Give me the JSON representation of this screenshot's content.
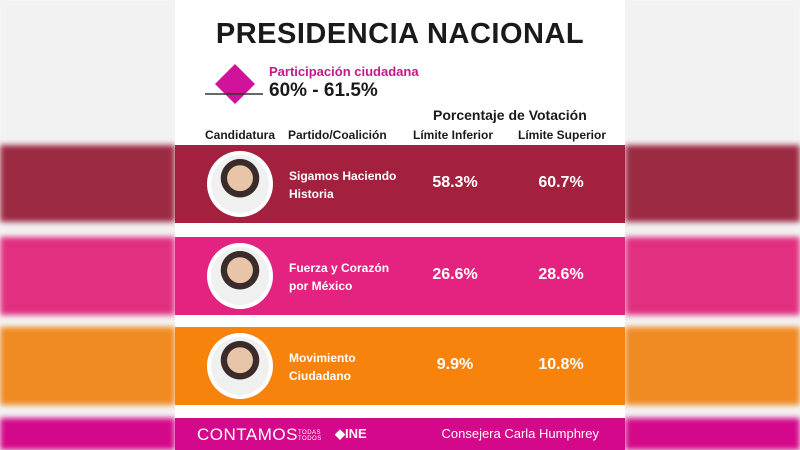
{
  "title": "PRESIDENCIA NACIONAL",
  "participation": {
    "label": "Participación ciudadana",
    "value": "60% - 61.5%",
    "icon": "ballot-box-icon"
  },
  "table": {
    "group_header": "Porcentaje de Votación",
    "columns": [
      "Candidatura",
      "Partido/Coalición",
      "Límite Inferior",
      "Límite Superior"
    ],
    "rows": [
      {
        "party": "Sigamos Haciendo Historia",
        "lower": "58.3%",
        "upper": "60.7%",
        "color": "#a3213f"
      },
      {
        "party": "Fuerza y Corazón por México",
        "lower": "26.6%",
        "upper": "28.6%",
        "color": "#e3237f"
      },
      {
        "party": "Movimiento Ciudadano",
        "lower": "9.9%",
        "upper": "10.8%",
        "color": "#f7820c"
      }
    ]
  },
  "footer": {
    "logo": "CONTAMOS",
    "logo_small_1": "TODAS",
    "logo_small_2": "TODOS",
    "ine": "INE",
    "credit": "Consejera Carla Humphrey",
    "color": "#d4088a"
  }
}
